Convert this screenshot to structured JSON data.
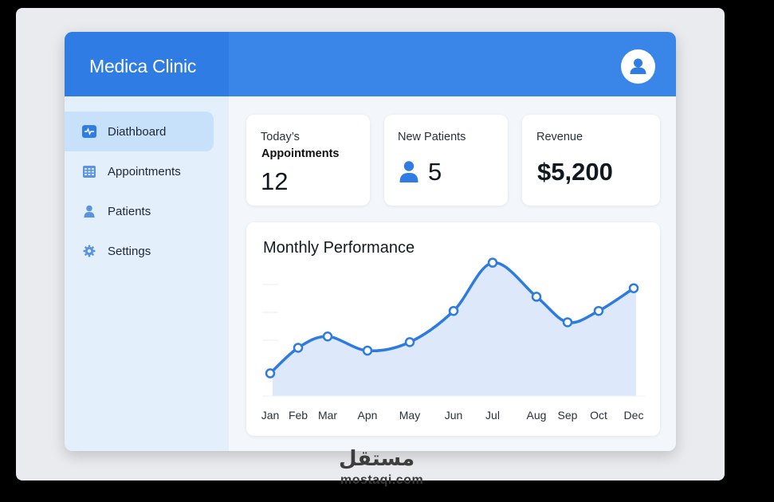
{
  "header": {
    "title": "Medica Clinic"
  },
  "sidebar": {
    "items": [
      {
        "label": "Diathboard",
        "icon": "dashboard-icon",
        "active": true
      },
      {
        "label": "Appointments",
        "icon": "calendar-grid-icon",
        "active": false
      },
      {
        "label": "Patients",
        "icon": "user-icon",
        "active": false
      },
      {
        "label": "Settings",
        "icon": "gear-icon",
        "active": false
      }
    ]
  },
  "cards": {
    "appointments": {
      "label": "Today’s",
      "sublabel": "Appointments",
      "value": "12"
    },
    "new_patients": {
      "label": "New Patients",
      "value": "5",
      "icon": "user-icon"
    },
    "revenue": {
      "label": "Revenue",
      "value": "$5,200"
    }
  },
  "chart_data": {
    "type": "area",
    "title": "Monthly Performance",
    "categories": [
      "Jan",
      "Feb",
      "Mar",
      "Apn",
      "May",
      "Jun",
      "Jul",
      "Aug",
      "Sep",
      "Oct",
      "Dec"
    ],
    "values": [
      8,
      17,
      21,
      16,
      19,
      30,
      47,
      35,
      26,
      30,
      38
    ],
    "ylim": [
      0,
      50
    ],
    "grid": false,
    "colors": {
      "line": "#2e7be0",
      "fill": "#dde9fb"
    }
  },
  "watermark": {
    "text": "mostaqi.com",
    "arabic": "مستقل"
  },
  "colors": {
    "accent": "#3a86e8",
    "sidebar": "#e3f0fc",
    "active": "#c8e1fb"
  }
}
